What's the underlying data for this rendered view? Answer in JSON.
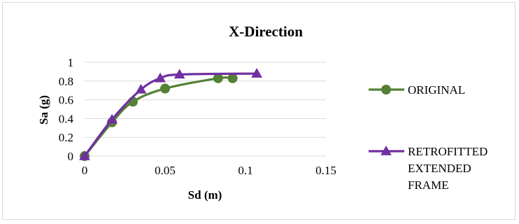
{
  "chart_data": {
    "type": "scatter",
    "title": "X-Direction",
    "xlabel": "Sd (m)",
    "ylabel": "Sa (g)",
    "xlim": [
      0,
      0.15
    ],
    "ylim": [
      0,
      1
    ],
    "x_ticks": [
      "0",
      "0.05",
      "0.1",
      "0.15"
    ],
    "y_ticks": [
      "0",
      "0.2",
      "0.4",
      "0.6",
      "0.8",
      "1"
    ],
    "grid": "horizontal",
    "legend_position": "right",
    "series": [
      {
        "name": "ORIGINAL",
        "color": "#538135",
        "marker": "circle",
        "smooth": true,
        "points": [
          [
            0,
            0
          ],
          [
            0.017,
            0.36
          ],
          [
            0.03,
            0.58
          ],
          [
            0.05,
            0.72
          ],
          [
            0.083,
            0.83
          ],
          [
            0.092,
            0.83
          ]
        ]
      },
      {
        "name": "RETROFITTED EXTENDED FRAME",
        "legend_lines": [
          "RETROFITTED",
          "EXTENDED",
          "FRAME"
        ],
        "color": "#7030A0",
        "marker": "triangle",
        "smooth": true,
        "points": [
          [
            0,
            0
          ],
          [
            0.017,
            0.39
          ],
          [
            0.035,
            0.71
          ],
          [
            0.047,
            0.83
          ],
          [
            0.059,
            0.87
          ],
          [
            0.107,
            0.88
          ]
        ]
      }
    ]
  }
}
